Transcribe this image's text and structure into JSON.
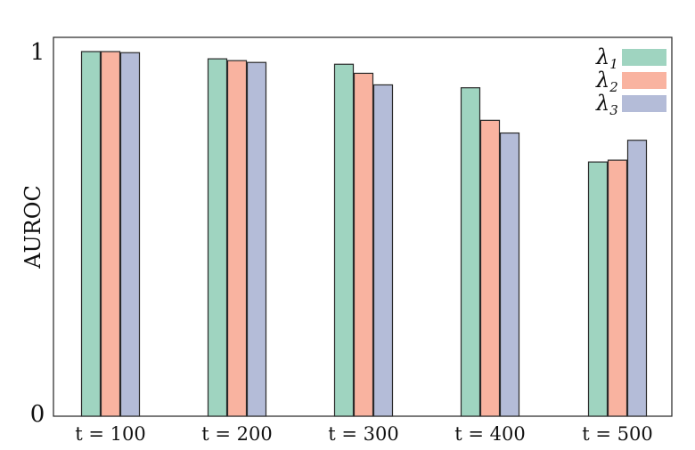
{
  "chart_data": {
    "type": "bar",
    "title": "",
    "xlabel": "",
    "ylabel": "AUROC",
    "ylim": [
      0,
      1
    ],
    "yticks": [
      "0",
      "1"
    ],
    "categories": [
      "t = 100",
      "t = 200",
      "t = 300",
      "t = 400",
      "t = 500"
    ],
    "series": [
      {
        "name": "λ1",
        "color": "#9fd4c0",
        "values": [
          1.0,
          0.98,
          0.965,
          0.9,
          0.695
        ]
      },
      {
        "name": "λ2",
        "color": "#f9b3a0",
        "values": [
          1.0,
          0.975,
          0.94,
          0.81,
          0.7
        ]
      },
      {
        "name": "λ3",
        "color": "#b4bcd8",
        "values": [
          0.997,
          0.97,
          0.908,
          0.775,
          0.755
        ]
      }
    ],
    "legend": {
      "position": "top-right"
    },
    "grid": false
  }
}
